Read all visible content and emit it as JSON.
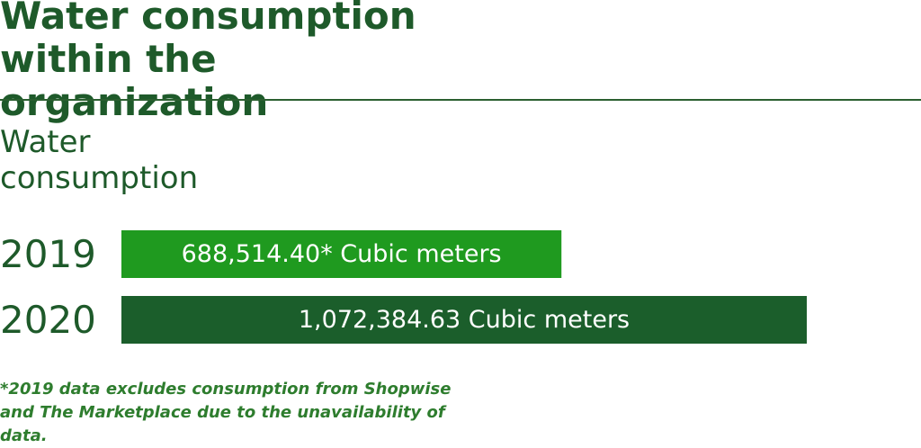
{
  "chart_data": {
    "type": "hbar",
    "title": "Water consumption within the organization",
    "subtitle": "Water consumption",
    "categories": [
      "2019",
      "2020"
    ],
    "values": [
      688514.4,
      1072384.63
    ],
    "value_labels": [
      "688,514.40* Cubic meters",
      "1,072,384.63 Cubic meters"
    ],
    "colors": [
      "#1f9a1f",
      "#1b5e2b"
    ],
    "footnote": "*2019 data excludes consumption from Shopwise and The Marketplace due to the unavailability of data."
  }
}
